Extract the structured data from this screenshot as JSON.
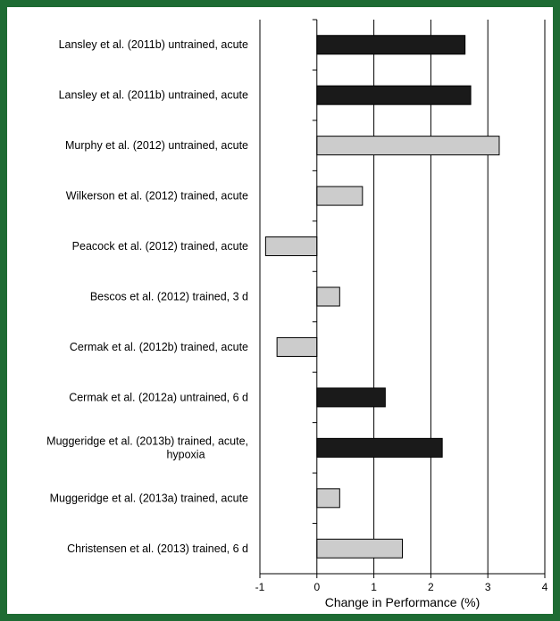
{
  "chart_data": {
    "type": "bar",
    "orientation": "horizontal",
    "title": "",
    "xlabel": "Change in Performance (%)",
    "ylabel": "",
    "xlim": [
      -1,
      4
    ],
    "xticks": [
      -1,
      0,
      1,
      2,
      3,
      4
    ],
    "grid": "vertical",
    "legend": "none",
    "categories": [
      [
        "Lansley et al. (2011b) untrained, acute"
      ],
      [
        "Lansley et al. (2011b) untrained, acute"
      ],
      [
        "Murphy et al. (2012) untrained, acute"
      ],
      [
        "Wilkerson et al. (2012) trained, acute"
      ],
      [
        "Peacock et al. (2012) trained, acute"
      ],
      [
        "Bescos et al. (2012) trained, 3 d"
      ],
      [
        "Cermak et al. (2012b) trained, acute"
      ],
      [
        "Cermak et al. (2012a) untrained, 6 d"
      ],
      [
        "Muggeridge et al. (2013b) trained, acute,",
        "hypoxia"
      ],
      [
        "Muggeridge et al. (2013a) trained, acute"
      ],
      [
        "Christensen et al. (2013) trained, 6 d"
      ]
    ],
    "values": [
      2.6,
      2.7,
      3.2,
      0.8,
      -0.9,
      0.4,
      -0.7,
      1.2,
      2.2,
      0.4,
      1.5
    ],
    "colors": [
      "#1a1a1a",
      "#1a1a1a",
      "#cccccc",
      "#cccccc",
      "#cccccc",
      "#cccccc",
      "#cccccc",
      "#1a1a1a",
      "#1a1a1a",
      "#cccccc",
      "#cccccc"
    ]
  }
}
